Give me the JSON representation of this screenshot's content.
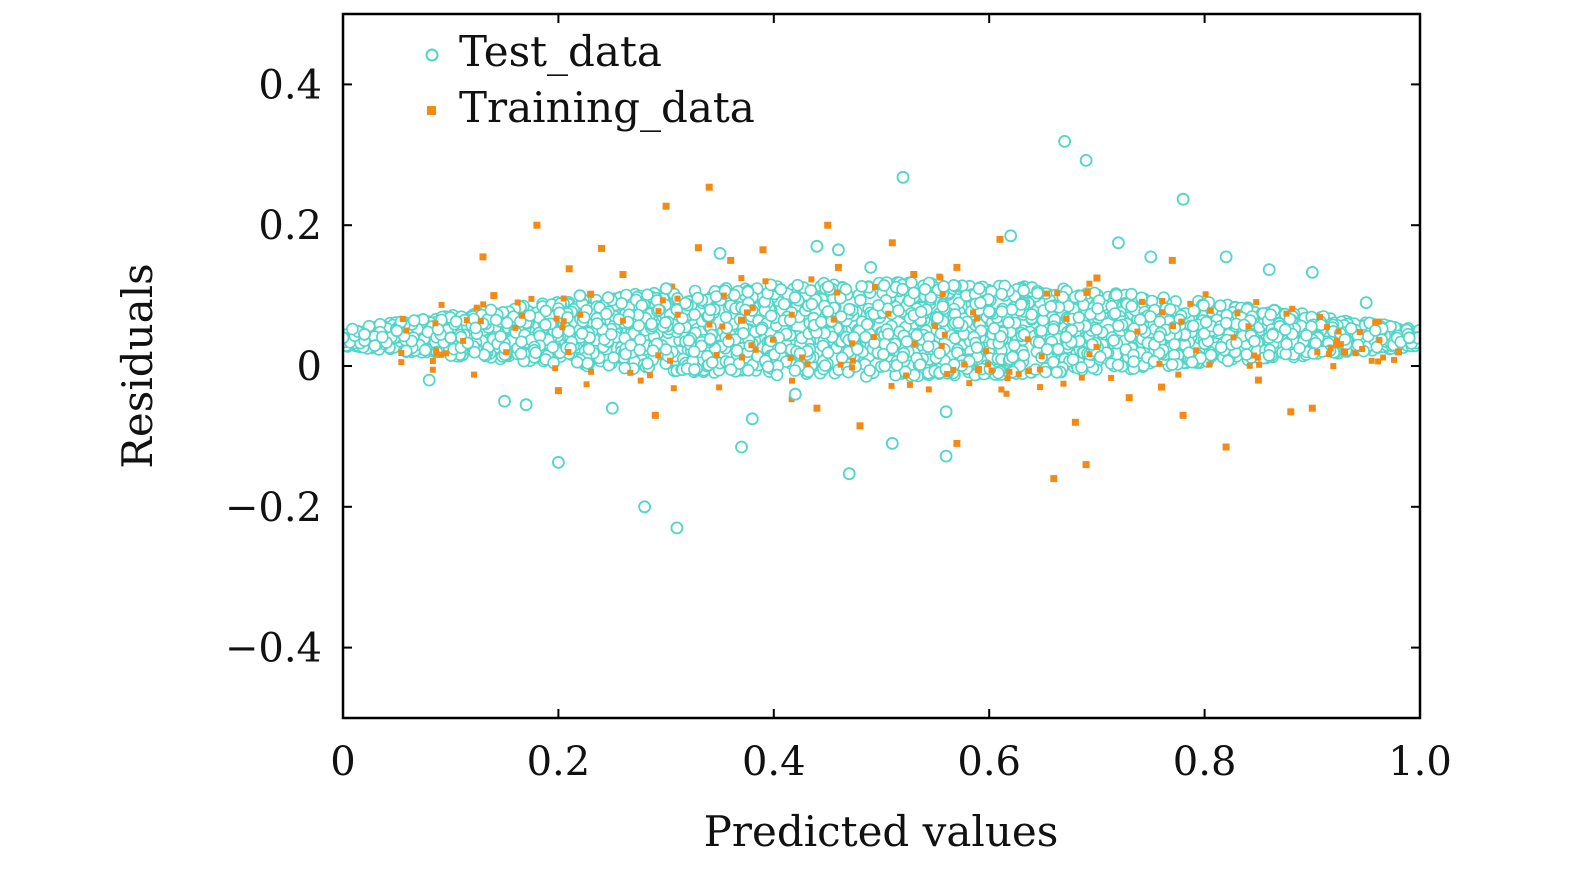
{
  "chart_data": {
    "type": "scatter",
    "xlabel": "Predicted values",
    "ylabel": "Residuals",
    "xlim": [
      0,
      1.0
    ],
    "ylim": [
      -0.5,
      0.5
    ],
    "x_ticks": [
      0,
      0.2,
      0.4,
      0.6,
      0.8,
      1.0
    ],
    "x_tick_labels": [
      "0",
      "0.2",
      "0.4",
      "0.6",
      "0.8",
      "1.0"
    ],
    "y_ticks": [
      -0.4,
      -0.2,
      0,
      0.2,
      0.4
    ],
    "y_tick_labels": [
      "−0.4",
      "−0.2",
      "0",
      "0.2",
      "0.4"
    ],
    "grid": false,
    "legend_position": "top-left",
    "series": [
      {
        "name": "Test_data",
        "marker": "open-circle",
        "color": "#4fd6c8",
        "points": [
          [
            0.0,
            0.04
          ],
          [
            0.02,
            0.045
          ],
          [
            0.05,
            0.05
          ],
          [
            0.08,
            -0.02
          ],
          [
            0.1,
            0.04
          ],
          [
            0.15,
            -0.05
          ],
          [
            0.17,
            -0.055
          ],
          [
            0.2,
            -0.137
          ],
          [
            0.22,
            0.1
          ],
          [
            0.25,
            -0.06
          ],
          [
            0.28,
            -0.2
          ],
          [
            0.3,
            0.11
          ],
          [
            0.31,
            -0.23
          ],
          [
            0.35,
            0.16
          ],
          [
            0.37,
            -0.115
          ],
          [
            0.38,
            -0.075
          ],
          [
            0.42,
            -0.04
          ],
          [
            0.44,
            0.17
          ],
          [
            0.46,
            0.165
          ],
          [
            0.47,
            -0.153
          ],
          [
            0.49,
            0.14
          ],
          [
            0.51,
            -0.11
          ],
          [
            0.52,
            0.268
          ],
          [
            0.56,
            -0.065
          ],
          [
            0.56,
            -0.128
          ],
          [
            0.62,
            0.185
          ],
          [
            0.67,
            0.319
          ],
          [
            0.69,
            0.292
          ],
          [
            0.72,
            0.175
          ],
          [
            0.75,
            0.155
          ],
          [
            0.78,
            0.237
          ],
          [
            0.82,
            0.155
          ],
          [
            0.86,
            0.137
          ],
          [
            0.9,
            0.133
          ],
          [
            0.95,
            0.09
          ],
          [
            0.99,
            0.04
          ]
        ]
      },
      {
        "name": "Training_data",
        "marker": "filled-square",
        "color": "#f28a14",
        "points": [
          [
            0.13,
            0.155
          ],
          [
            0.14,
            0.1
          ],
          [
            0.18,
            0.2
          ],
          [
            0.21,
            0.138
          ],
          [
            0.23,
            0.102
          ],
          [
            0.24,
            0.167
          ],
          [
            0.26,
            0.13
          ],
          [
            0.3,
            0.227
          ],
          [
            0.33,
            0.168
          ],
          [
            0.34,
            0.254
          ],
          [
            0.36,
            0.15
          ],
          [
            0.37,
            0.065
          ],
          [
            0.39,
            0.165
          ],
          [
            0.45,
            0.2
          ],
          [
            0.46,
            0.14
          ],
          [
            0.48,
            -0.085
          ],
          [
            0.51,
            0.175
          ],
          [
            0.53,
            0.13
          ],
          [
            0.57,
            0.14
          ],
          [
            0.57,
            -0.11
          ],
          [
            0.61,
            0.18
          ],
          [
            0.66,
            -0.16
          ],
          [
            0.68,
            -0.08
          ],
          [
            0.69,
            -0.14
          ],
          [
            0.7,
            0.125
          ],
          [
            0.73,
            -0.045
          ],
          [
            0.77,
            0.15
          ],
          [
            0.78,
            -0.07
          ],
          [
            0.82,
            -0.115
          ],
          [
            0.88,
            -0.065
          ],
          [
            0.9,
            -0.06
          ],
          [
            0.93,
            0.02
          ],
          [
            0.98,
            0.02
          ],
          [
            0.2,
            -0.035
          ],
          [
            0.29,
            -0.07
          ],
          [
            0.44,
            -0.06
          ],
          [
            0.59,
            -0.005
          ],
          [
            0.76,
            -0.03
          ],
          [
            0.85,
            -0.02
          ]
        ]
      }
    ]
  }
}
